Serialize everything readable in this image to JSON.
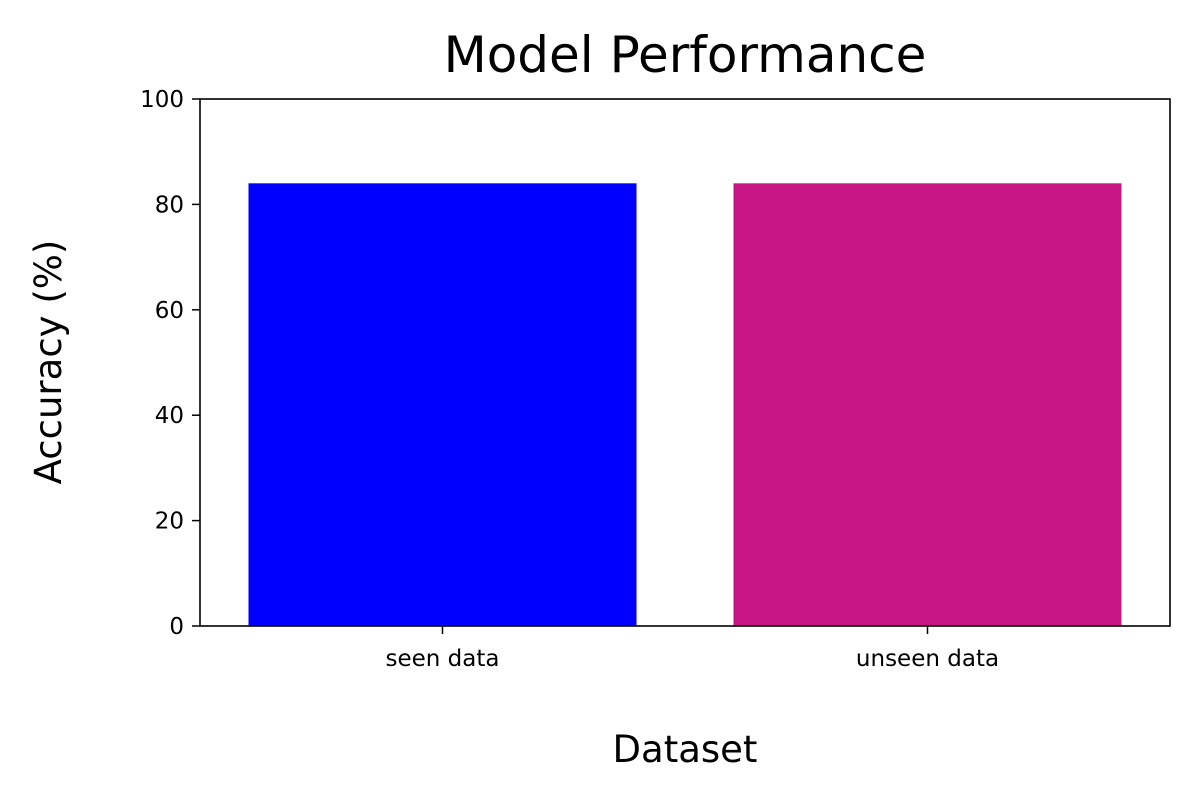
{
  "chart_data": {
    "type": "bar",
    "title": "Model Performance",
    "xlabel": "Dataset",
    "ylabel": "Accuracy (%)",
    "categories": [
      "seen data",
      "unseen data"
    ],
    "values": [
      84,
      84
    ],
    "colors": [
      "#0000ff",
      "#c71585"
    ],
    "ylim": [
      0,
      100
    ],
    "yticks": [
      "0",
      "20",
      "40",
      "60",
      "80",
      "100"
    ],
    "grid": false,
    "legend": "none"
  }
}
